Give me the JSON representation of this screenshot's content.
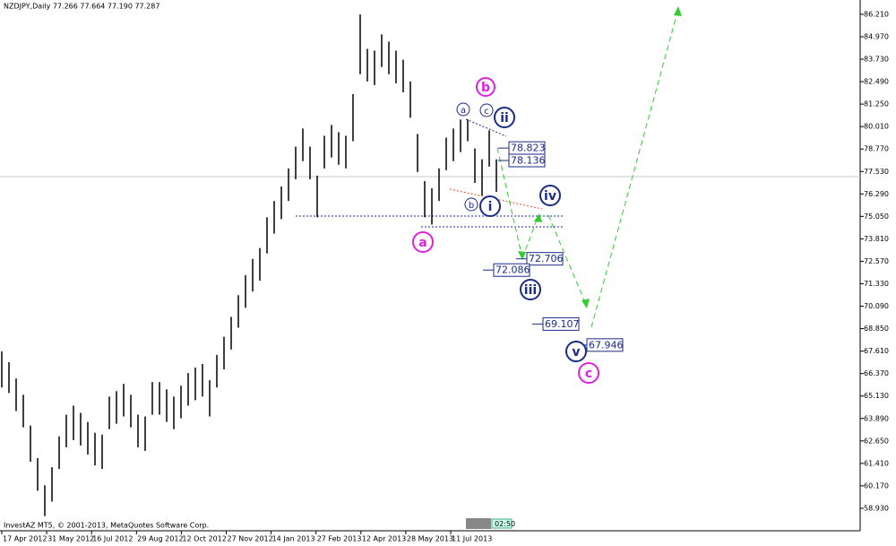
{
  "chart_data": {
    "type": "hilo",
    "title": "NZDJPY,Daily  77.266 77.664 77.190 77.287",
    "footer": "InvestAZ MT5, © 2001-2013, MetaQuotes Software Corp.",
    "color": "#000000",
    "categories": [
      "17 Apr 2012",
      "31 May 2012",
      "16 Jul 2012",
      "29 Aug 2012",
      "12 Oct 2012",
      "27 Nov 2012",
      "14 Jan 2013",
      "27 Feb 2013",
      "12 Apr 2013",
      "28 May 2013",
      "11 Jul 2013"
    ],
    "high": [
      67.6,
      67.0,
      66.1,
      65.2,
      63.5,
      61.7,
      60.2,
      61.2,
      62.9,
      64.1,
      64.6,
      64.2,
      63.7,
      63.1,
      63.0,
      65.1,
      65.4,
      65.8,
      65.2,
      64.1,
      64.0,
      65.9,
      65.9,
      65.5,
      65.1,
      65.7,
      66.4,
      66.7,
      66.9,
      66.0,
      67.4,
      68.4,
      69.5,
      70.7,
      71.8,
      72.7,
      73.3,
      75.0,
      75.9,
      76.7,
      77.7,
      78.9,
      79.9,
      78.9,
      77.3,
      79.5,
      80.1,
      79.7,
      79.5,
      81.8,
      86.2,
      84.3,
      84.2,
      85.1,
      84.7,
      84.2,
      83.7,
      82.5,
      79.6,
      77.0,
      76.6,
      77.7,
      79.4,
      79.9,
      80.4,
      80.4,
      78.8,
      78.2,
      79.8,
      78.2
    ],
    "low": [
      65.6,
      65.3,
      64.3,
      63.4,
      61.5,
      59.9,
      58.5,
      59.3,
      61.1,
      62.3,
      62.7,
      62.4,
      61.9,
      61.3,
      61.1,
      63.3,
      63.6,
      64.0,
      63.4,
      62.3,
      62.1,
      64.1,
      64.1,
      63.7,
      63.3,
      63.9,
      64.6,
      64.9,
      65.1,
      64.0,
      65.6,
      66.6,
      67.7,
      68.9,
      70.0,
      70.9,
      71.5,
      73.0,
      74.1,
      74.9,
      75.9,
      77.1,
      78.1,
      77.1,
      75.0,
      77.7,
      78.3,
      77.9,
      77.7,
      79.2,
      82.9,
      82.5,
      82.3,
      83.3,
      82.9,
      82.4,
      81.9,
      80.5,
      77.5,
      75.0,
      74.6,
      75.9,
      77.6,
      78.1,
      78.6,
      79.2,
      76.9,
      76.2,
      77.8,
      76.4
    ],
    "ylim": [
      57.74,
      86.8
    ],
    "yticks": [
      {
        "value": 86.21,
        "label": "86.210"
      },
      {
        "value": 84.97,
        "label": "84.970"
      },
      {
        "value": 83.73,
        "label": "83.730"
      },
      {
        "value": 82.49,
        "label": "82.490"
      },
      {
        "value": 81.25,
        "label": "81.250"
      },
      {
        "value": 80.01,
        "label": "80.010"
      },
      {
        "value": 78.77,
        "label": "78.770"
      },
      {
        "value": 77.53,
        "label": "77.530"
      },
      {
        "value": 76.29,
        "label": "76.290"
      },
      {
        "value": 75.05,
        "label": "75.050"
      },
      {
        "value": 73.81,
        "label": "73.810"
      },
      {
        "value": 72.57,
        "label": "72.570"
      },
      {
        "value": 71.33,
        "label": "71.330"
      },
      {
        "value": 70.09,
        "label": "70.090"
      },
      {
        "value": 68.85,
        "label": "68.850"
      },
      {
        "value": 67.61,
        "label": "67.610"
      },
      {
        "value": 66.37,
        "label": "66.370"
      },
      {
        "value": 65.13,
        "label": "65.130"
      },
      {
        "value": 63.89,
        "label": "63.890"
      },
      {
        "value": 62.65,
        "label": "62.650"
      },
      {
        "value": 61.41,
        "label": "61.410"
      },
      {
        "value": 60.17,
        "label": "60.170"
      },
      {
        "value": 58.93,
        "label": "58.930"
      }
    ],
    "price_boxes": [
      {
        "value": 78.823,
        "label": "78.823"
      },
      {
        "value": 78.136,
        "label": "78.136"
      },
      {
        "value": 72.706,
        "label": "72.706"
      },
      {
        "value": 72.086,
        "label": "72.086"
      },
      {
        "value": 69.107,
        "label": "69.107"
      },
      {
        "value": 67.946,
        "label": "67.946"
      }
    ],
    "wave_labels": [
      "b",
      "a",
      "c",
      "ii",
      "b",
      "i",
      "a",
      "iv",
      "iii",
      "v",
      "c"
    ],
    "clock": "02:50"
  }
}
